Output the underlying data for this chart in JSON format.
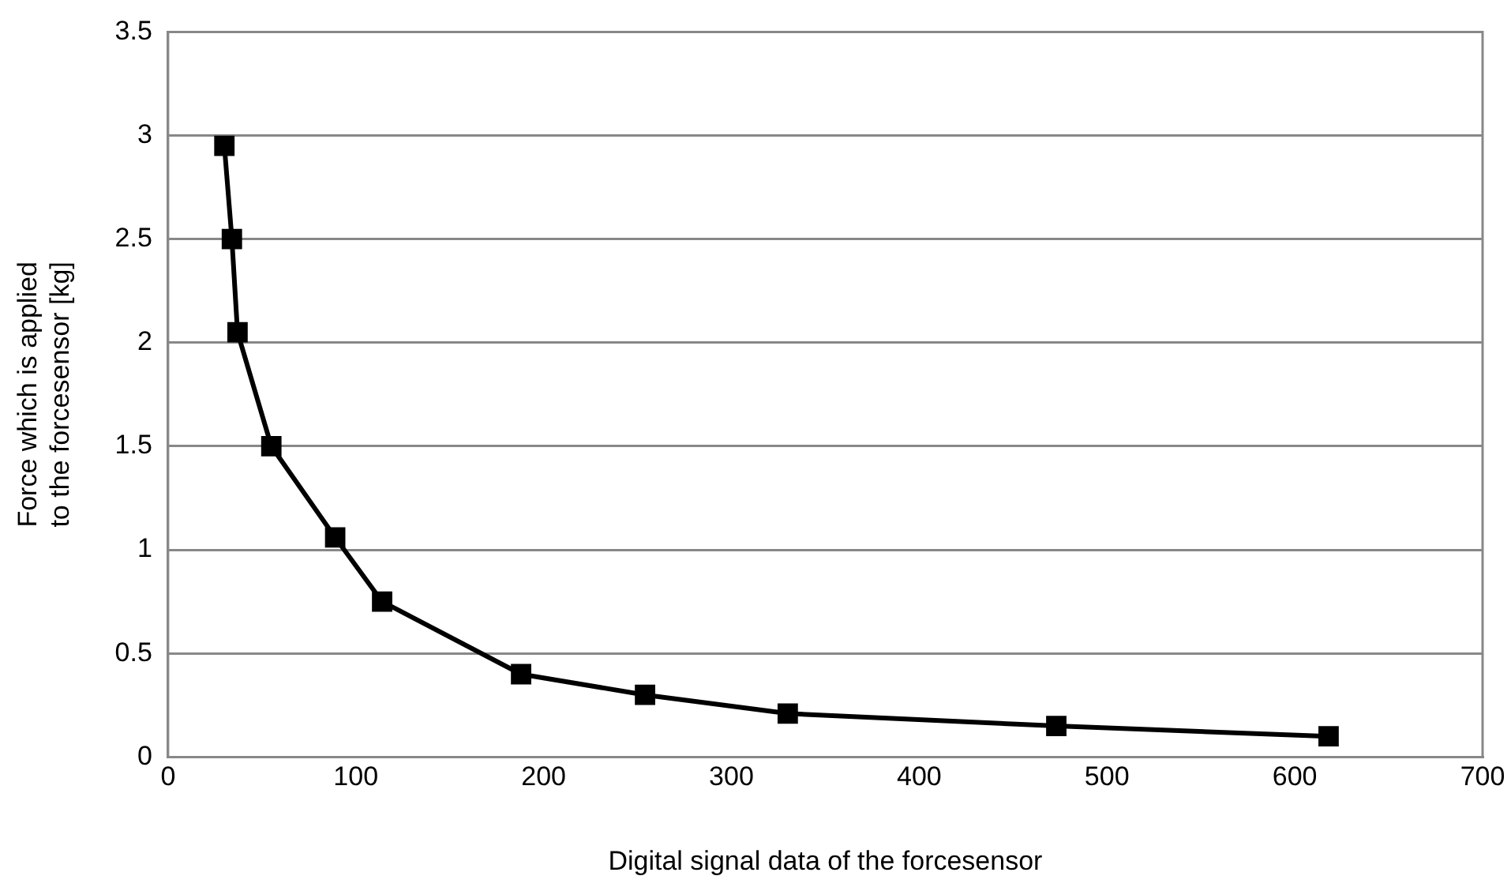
{
  "chart_data": {
    "type": "line",
    "xlabel": "Digital signal data of the forcesensor",
    "ylabel": "Force which is applied to the forcesensor [kg]",
    "x": [
      30,
      34,
      37,
      55,
      89,
      114,
      188,
      254,
      330,
      473,
      618
    ],
    "series": [
      {
        "color": "#000000",
        "values": [
          2.95,
          2.5,
          2.05,
          1.5,
          1.06,
          0.75,
          0.4,
          0.3,
          0.21,
          0.15,
          0.1
        ]
      }
    ],
    "xlim": [
      0,
      700
    ],
    "xticks": [
      0,
      100,
      200,
      300,
      400,
      500,
      600,
      700
    ],
    "ylim": [
      0,
      3.5
    ],
    "yticks": [
      0,
      0.5,
      1,
      1.5,
      2,
      2.5,
      3,
      3.5
    ],
    "grid": "y",
    "legend": false,
    "marker": "square",
    "line_style": "solid"
  }
}
